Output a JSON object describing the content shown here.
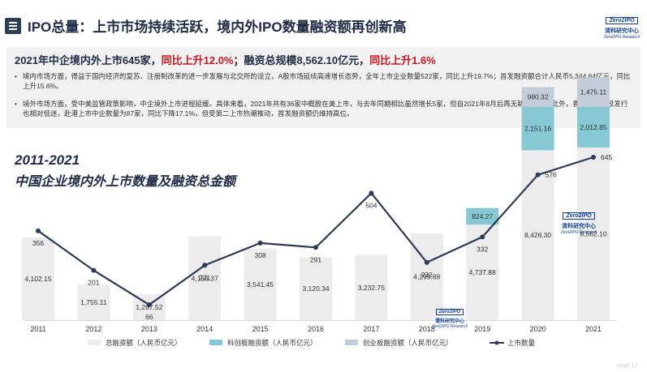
{
  "header": {
    "title": "IPO总量：上市市场持续活跃，境内外IPO数量融资额再创新高",
    "logo": {
      "top": "Zero2IPO",
      "middle": "清科研究中心",
      "bottom": "Zero2IPO Research"
    }
  },
  "summary": {
    "headline_part1": "2021年中企境内外上市645家，",
    "headline_part2": "同比上升12.0%",
    "headline_part3": "；融资总规模8,562.10亿元，",
    "headline_part4": "同比上升1.6%",
    "bullet_dot": "•",
    "bullets": [
      "境内市场方面，得益于国内经济的复苏、注册制改革的进一步发展与北交所的设立，A股市场延续高速增长态势，全年上市企业数量522家，同比上升19.7%；首发融资额合计人民币5,344.64亿元，同比上升15.6%。",
      "境外市场方面，受中美监管政策影响，中企境外上市进程延缓。具体来看，2021年共有36家中概股在美上市，与去年同期相比虽然增长5家，但自2021年8月后再无新股上市；此外，香港市场新股发行也相对低迷，赴港上市中企数量为87家，同比下降17.1%，但受第二上市热潮推动，首发融资额仍维持高位。"
    ]
  },
  "chart_data": {
    "type": "bar",
    "title_line1": "2011-2021",
    "title_line2": "中国企业境内外上市数量及融资总金额",
    "categories": [
      "2011",
      "2012",
      "2013",
      "2014",
      "2015",
      "2016",
      "2017",
      "2018",
      "2019",
      "2020",
      "2021"
    ],
    "series": [
      {
        "name": "总融资额（人民币亿元）",
        "type": "bar",
        "color": "#ececec",
        "values": [
          4102.15,
          1755.11,
          1267.52,
          4156.37,
          3541.45,
          3120.34,
          3232.75,
          4299.88,
          4737.88,
          8426.3,
          8562.1
        ],
        "labels": [
          "4,102.15",
          "1,755.11",
          "1,267.52",
          "4,156.37",
          "3,541.45",
          "3,120.34",
          "3,232.75",
          "4,299.88",
          "4,737.88",
          "8,426.30",
          "8,562.10"
        ]
      },
      {
        "name": "科创板融资额（人民币亿元）",
        "type": "bar",
        "color": "#86c8d3",
        "values": [
          null,
          null,
          null,
          null,
          null,
          null,
          null,
          null,
          824.27,
          2151.16,
          2012.85
        ],
        "labels": [
          "",
          "",
          "",
          "",
          "",
          "",
          "",
          "",
          "824.27",
          "2,151.16",
          "2,012.85"
        ]
      },
      {
        "name": "创业板融资额（人民币亿元）",
        "type": "bar",
        "color": "#c4cbd9",
        "values": [
          null,
          null,
          null,
          null,
          null,
          null,
          null,
          null,
          null,
          980.32,
          1475.11
        ],
        "labels": [
          "",
          "",
          "",
          "",
          "",
          "",
          "",
          "",
          "",
          "980.32",
          "1,475.11"
        ]
      },
      {
        "name": "上市数量",
        "type": "line",
        "color": "#2e3a55",
        "values": [
          356,
          201,
          66,
          221,
          308,
          291,
          504,
          232,
          332,
          576,
          645
        ],
        "labels": [
          "356",
          "201",
          "66",
          "221",
          "308",
          "291",
          "504",
          "232",
          "332",
          "576",
          "645"
        ]
      }
    ],
    "chart_logo": {
      "top": "Zero2IPO",
      "middle": "清科研究中心",
      "bottom": "Zero2IPO Research"
    },
    "chart_logo_small": {
      "top": "Zero2IPO",
      "middle": "清科研究中心",
      "bottom": "Zero2IPO Research"
    },
    "legend_position": "bottom"
  },
  "page_number": "page 12"
}
